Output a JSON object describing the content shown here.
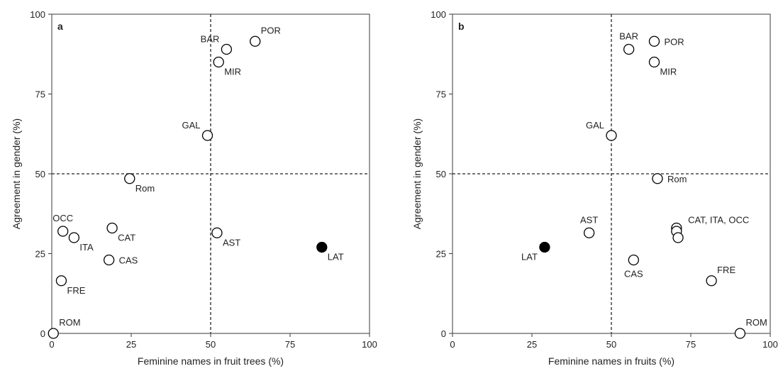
{
  "chart_data": [
    {
      "type": "scatter",
      "panel_label": "a",
      "xlabel": "Feminine names in fruit trees (%)",
      "ylabel": "Agreement in gender (%)",
      "xlim": [
        0,
        100
      ],
      "ylim": [
        0,
        100
      ],
      "xticks": [
        "0",
        "25",
        "50",
        "75",
        "100"
      ],
      "yticks": [
        "0",
        "25",
        "50",
        "75",
        "100"
      ],
      "reference_lines": {
        "x": 50,
        "y": 50
      },
      "grid": false,
      "points": [
        {
          "label": "POR",
          "x": 64,
          "y": 91.5,
          "filled": false,
          "label_pos": "upper-right"
        },
        {
          "label": "BAR",
          "x": 55,
          "y": 89,
          "filled": false,
          "label_pos": "upper-left"
        },
        {
          "label": "MIR",
          "x": 52.5,
          "y": 85,
          "filled": false,
          "label_pos": "lower-right"
        },
        {
          "label": "GAL",
          "x": 49,
          "y": 62,
          "filled": false,
          "label_pos": "upper-left"
        },
        {
          "label": "Rom",
          "x": 24.5,
          "y": 48.5,
          "filled": false,
          "label_pos": "lower-right"
        },
        {
          "label": "OCC",
          "x": 3.5,
          "y": 32,
          "filled": false,
          "label_pos": "upper-center"
        },
        {
          "label": "ITA",
          "x": 7,
          "y": 30,
          "filled": false,
          "label_pos": "lower-right"
        },
        {
          "label": "CAT",
          "x": 19,
          "y": 33,
          "filled": false,
          "label_pos": "lower-right"
        },
        {
          "label": "CAS",
          "x": 18,
          "y": 23,
          "filled": false,
          "label_pos": "right"
        },
        {
          "label": "AST",
          "x": 52,
          "y": 31.5,
          "filled": false,
          "label_pos": "lower-right"
        },
        {
          "label": "LAT",
          "x": 85,
          "y": 27,
          "filled": true,
          "label_pos": "lower-right"
        },
        {
          "label": "FRE",
          "x": 3,
          "y": 16.5,
          "filled": false,
          "label_pos": "lower-right"
        },
        {
          "label": "ROM",
          "x": 0.5,
          "y": 0,
          "filled": false,
          "label_pos": "upper-right"
        }
      ]
    },
    {
      "type": "scatter",
      "panel_label": "b",
      "xlabel": "Feminine names in fruits (%)",
      "ylabel": "Agreement in gender (%)",
      "xlim": [
        0,
        100
      ],
      "ylim": [
        0,
        100
      ],
      "xticks": [
        "0",
        "25",
        "50",
        "75",
        "100"
      ],
      "yticks": [
        "0",
        "25",
        "50",
        "75",
        "100"
      ],
      "reference_lines": {
        "x": 50,
        "y": 50
      },
      "grid": false,
      "points": [
        {
          "label": "POR",
          "x": 63.5,
          "y": 91.5,
          "filled": false,
          "label_pos": "right"
        },
        {
          "label": "BAR",
          "x": 55.5,
          "y": 89,
          "filled": false,
          "label_pos": "upper-center"
        },
        {
          "label": "MIR",
          "x": 63.5,
          "y": 85,
          "filled": false,
          "label_pos": "lower-right"
        },
        {
          "label": "GAL",
          "x": 50,
          "y": 62,
          "filled": false,
          "label_pos": "upper-left"
        },
        {
          "label": "Rom",
          "x": 64.5,
          "y": 48.5,
          "filled": false,
          "label_pos": "right"
        },
        {
          "label": "",
          "x": 70.5,
          "y": 33,
          "filled": false,
          "label_pos": "none"
        },
        {
          "label": "",
          "x": 70.5,
          "y": 32,
          "filled": false,
          "label_pos": "none"
        },
        {
          "label": "",
          "x": 71,
          "y": 30,
          "filled": false,
          "label_pos": "none"
        },
        {
          "label": "AST",
          "x": 43,
          "y": 31.5,
          "filled": false,
          "label_pos": "upper-center"
        },
        {
          "label": "LAT",
          "x": 29,
          "y": 27,
          "filled": true,
          "label_pos": "lower-left"
        },
        {
          "label": "CAS",
          "x": 57,
          "y": 23,
          "filled": false,
          "label_pos": "lower-center"
        },
        {
          "label": "FRE",
          "x": 81.5,
          "y": 16.5,
          "filled": false,
          "label_pos": "upper-right"
        },
        {
          "label": "ROM",
          "x": 90.5,
          "y": 0,
          "filled": false,
          "label_pos": "upper-right"
        }
      ],
      "annotations": [
        {
          "text": "CAT, ITA,  OCC",
          "x": 71,
          "y": 33,
          "label_pos": "right"
        }
      ]
    }
  ]
}
